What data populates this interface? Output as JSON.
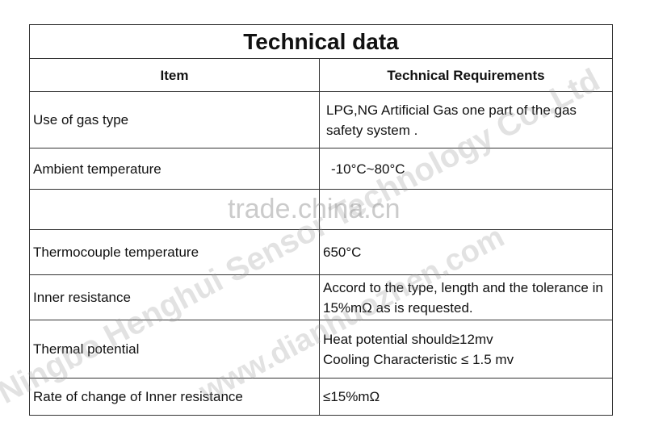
{
  "title": "Technical data",
  "table": {
    "header": [
      "Item",
      "Technical Requirements"
    ],
    "rows": [
      [
        "Use of gas type",
        "LPG,NG Artificial Gas one part of the gas safety system ."
      ],
      [
        "Ambient temperature",
        "-10°C~80°C"
      ],
      [
        "Thermocouple temperature",
        "650°C"
      ],
      [
        "Inner resistance",
        "Accord to the type, length and the tolerance  in 15%mΩ as is requested."
      ],
      [
        "Thermal potential",
        [
          "Heat potential should≥12mv",
          "Cooling Characteristic ≤ 1.5 mv"
        ]
      ],
      [
        "Rate of change of Inner resistance",
        "≤15%mΩ"
      ]
    ]
  },
  "watermarks": [
    "trade.china.cn",
    "Ningbo Henghui Sensor Technology Co.,Ltd",
    "www.dianhuozhen.com"
  ]
}
